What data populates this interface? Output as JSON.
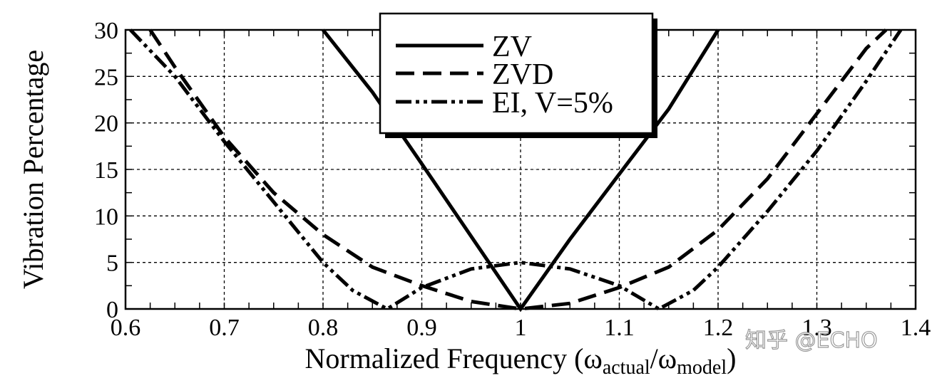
{
  "chart_data": {
    "type": "line",
    "title": "",
    "xlabel": {
      "main": "Normalized Frequency (",
      "omega1": "ω",
      "sub1": "actual",
      "slash": "/",
      "omega2": "ω",
      "sub2": "model",
      "close": ")"
    },
    "ylabel": "Vibration Percentage",
    "xlim": [
      0.6,
      1.4
    ],
    "ylim": [
      0,
      30
    ],
    "xticks": [
      "0.6",
      "0.7",
      "0.8",
      "0.9",
      "1",
      "1.1",
      "1.2",
      "1.3",
      "1.4"
    ],
    "yticks": [
      "0",
      "5",
      "10",
      "15",
      "20",
      "25",
      "30"
    ],
    "grid": true,
    "legend_position": "top-center",
    "series": [
      {
        "name": "ZV",
        "style": "solid",
        "points": [
          [
            0.8,
            30
          ],
          [
            0.85,
            23.3
          ],
          [
            0.9,
            15.6
          ],
          [
            0.95,
            7.8
          ],
          [
            1.0,
            0
          ],
          [
            1.05,
            7.5
          ],
          [
            1.1,
            14.5
          ],
          [
            1.15,
            21.5
          ],
          [
            1.2,
            30
          ]
        ]
      },
      {
        "name": "ZVD",
        "style": "dashed",
        "points": [
          [
            0.625,
            30
          ],
          [
            0.65,
            26
          ],
          [
            0.7,
            18.5
          ],
          [
            0.75,
            12.5
          ],
          [
            0.8,
            8
          ],
          [
            0.85,
            4.5
          ],
          [
            0.9,
            2.5
          ],
          [
            0.95,
            0.8
          ],
          [
            1.0,
            0
          ],
          [
            1.05,
            0.6
          ],
          [
            1.1,
            2.3
          ],
          [
            1.15,
            4.5
          ],
          [
            1.2,
            8.5
          ],
          [
            1.25,
            14
          ],
          [
            1.3,
            21
          ],
          [
            1.35,
            28
          ],
          [
            1.37,
            30
          ]
        ]
      },
      {
        "name": "EI, V=5%",
        "style": "dash-dot-dot",
        "points": [
          [
            0.605,
            30
          ],
          [
            0.65,
            25
          ],
          [
            0.7,
            18
          ],
          [
            0.75,
            11.5
          ],
          [
            0.8,
            5
          ],
          [
            0.83,
            2
          ],
          [
            0.865,
            0
          ],
          [
            0.9,
            2.3
          ],
          [
            0.95,
            4.3
          ],
          [
            1.0,
            5
          ],
          [
            1.05,
            4.3
          ],
          [
            1.1,
            2.5
          ],
          [
            1.14,
            0
          ],
          [
            1.175,
            2
          ],
          [
            1.2,
            4.5
          ],
          [
            1.25,
            10.5
          ],
          [
            1.3,
            17
          ],
          [
            1.35,
            24.5
          ],
          [
            1.385,
            30
          ]
        ]
      }
    ]
  },
  "watermark": "知乎 @ECHO"
}
